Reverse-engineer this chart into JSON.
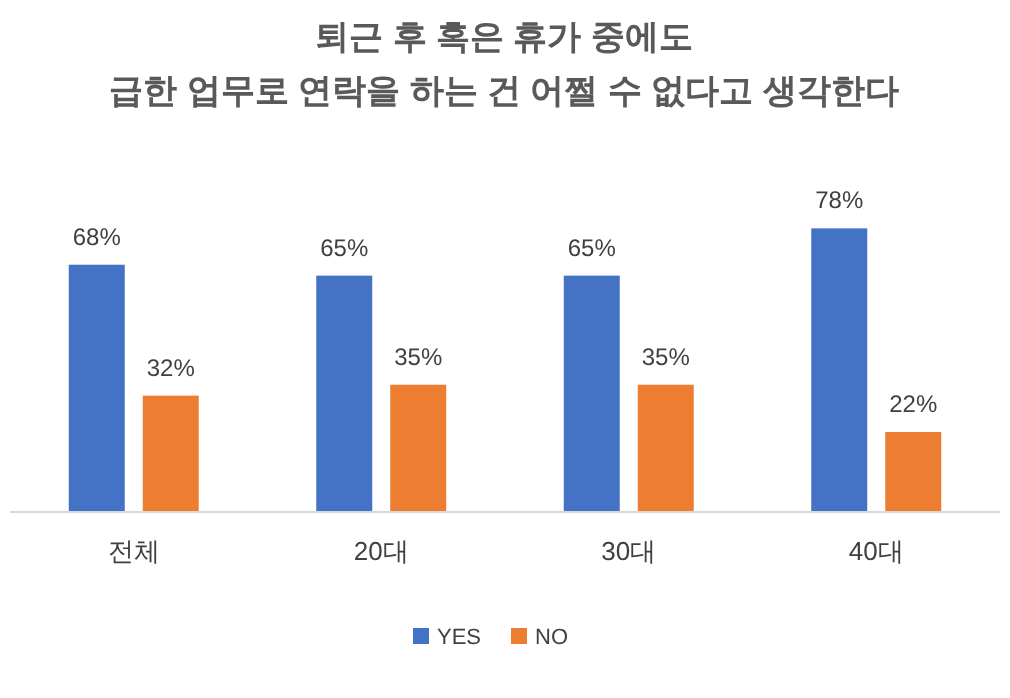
{
  "chart_data": {
    "type": "bar",
    "title": "퇴근 후 혹은 휴가 중에도\n급한 업무로 연락을 하는 건 어쩔 수 없다고 생각한다",
    "categories": [
      "전체",
      "20대",
      "30대",
      "40대"
    ],
    "series": [
      {
        "name": "YES",
        "color": "#4472c4",
        "values": [
          68,
          65,
          65,
          78
        ],
        "value_labels": [
          "68%",
          "65%",
          "65%",
          "78%"
        ]
      },
      {
        "name": "NO",
        "color": "#ed7d31",
        "values": [
          32,
          35,
          35,
          22
        ],
        "value_labels": [
          "32%",
          "35%",
          "35%",
          "22%"
        ]
      }
    ],
    "legend": "bottom"
  }
}
